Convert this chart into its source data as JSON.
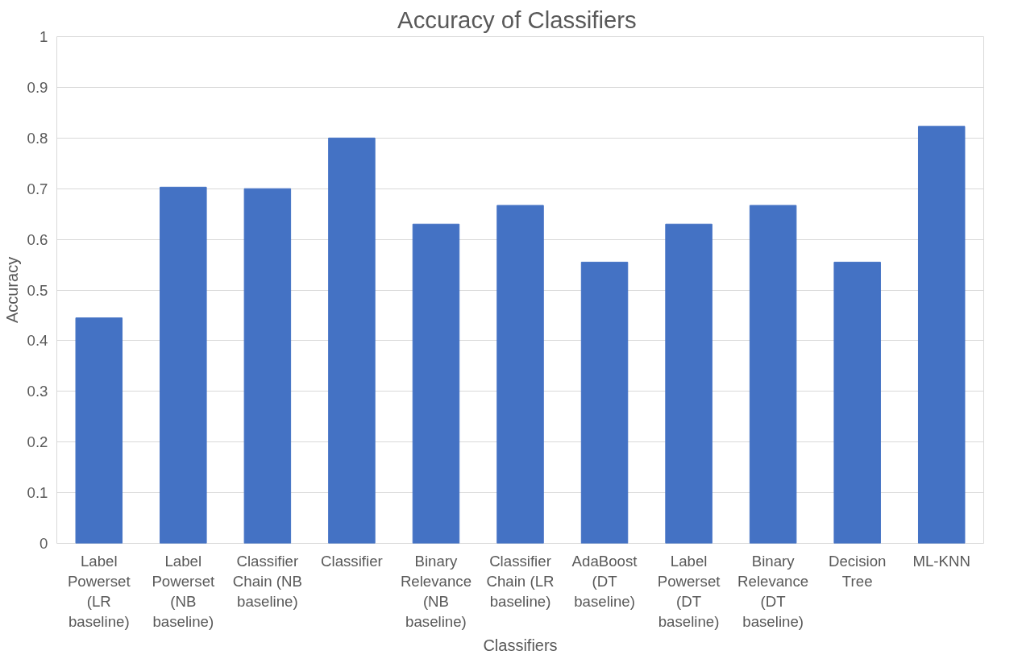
{
  "chart_data": {
    "type": "bar",
    "title": "Accuracy  of Classifiers",
    "xlabel": "Classifiers",
    "ylabel": "Accuracy",
    "categories": [
      "Label Powerset (LR baseline)",
      "Label Powerset (NB baseline)",
      "Classifier Chain (NB baseline)",
      "Classifier",
      "Binary Relevance (NB baseline)",
      "Classifier Chain (LR baseline)",
      "AdaBoost (DT baseline)",
      "Label Powerset (DT baseline)",
      "Binary Relevance (DT baseline)",
      "Decision Tree",
      "ML-KNN"
    ],
    "values": [
      0.445,
      0.703,
      0.7,
      0.8,
      0.63,
      0.667,
      0.555,
      0.63,
      0.667,
      0.555,
      0.823
    ],
    "color": "#4472c4",
    "ylim": [
      0,
      1
    ],
    "yticks": [
      0,
      0.1,
      0.2,
      0.3,
      0.4,
      0.5,
      0.6,
      0.7,
      0.8,
      0.9,
      1
    ],
    "grid": "y"
  }
}
